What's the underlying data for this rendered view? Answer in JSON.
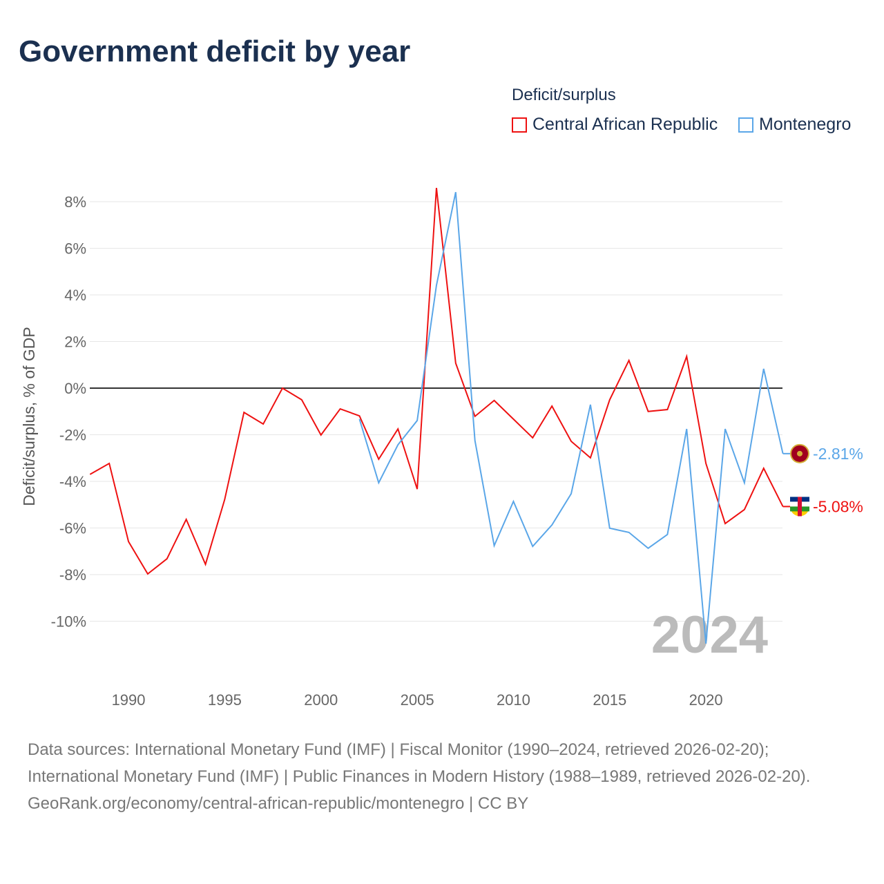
{
  "chart_data": {
    "type": "line",
    "title": "Government deficit by year",
    "ylabel": "Deficit/surplus, % of GDP",
    "xlabel": "",
    "xlim": [
      1988,
      2024
    ],
    "ylim": [
      -11,
      8.6
    ],
    "x_ticks": [
      1990,
      1995,
      2000,
      2005,
      2010,
      2015,
      2020
    ],
    "y_ticks": [
      8,
      6,
      4,
      2,
      0,
      -2,
      -4,
      -6,
      -8,
      -10
    ],
    "y_tick_labels": [
      "8%",
      "6%",
      "4%",
      "2%",
      "0%",
      "-2%",
      "-4%",
      "-6%",
      "-8%",
      "-10%"
    ],
    "x_tick_labels": [
      "1990",
      "1995",
      "2000",
      "2005",
      "2010",
      "2015",
      "2020"
    ],
    "legend_title": "Deficit/surplus",
    "legend_placement": "top-right",
    "year_watermark": "2024",
    "series": [
      {
        "name": "Central African Republic",
        "color": "#ee1111",
        "end_label": "-5.08%",
        "x": [
          1988,
          1989,
          1990,
          1991,
          1992,
          1993,
          1994,
          1995,
          1996,
          1997,
          1998,
          1999,
          2000,
          2001,
          2002,
          2003,
          2004,
          2005,
          2006,
          2007,
          2008,
          2009,
          2010,
          2011,
          2012,
          2013,
          2014,
          2015,
          2016,
          2017,
          2018,
          2019,
          2020,
          2021,
          2022,
          2023,
          2024
        ],
        "values": [
          -3.7,
          -3.23,
          -6.58,
          -7.97,
          -7.32,
          -5.63,
          -7.56,
          -4.77,
          -1.04,
          -1.54,
          0,
          -0.5,
          -2.01,
          -0.89,
          -1.19,
          -3.05,
          -1.75,
          -4.33,
          8.59,
          1.07,
          -1.21,
          -0.53,
          -1.33,
          -2.13,
          -0.77,
          -2.28,
          -2.99,
          -0.5,
          1.19,
          -1.0,
          -0.92,
          1.36,
          -3.23,
          -5.81,
          -5.21,
          -3.44,
          -5.08
        ]
      },
      {
        "name": "Montenegro",
        "color": "#5aa6e8",
        "end_label": "-2.81%",
        "x": [
          2002,
          2003,
          2004,
          2005,
          2006,
          2007,
          2008,
          2009,
          2010,
          2011,
          2012,
          2013,
          2014,
          2015,
          2016,
          2017,
          2018,
          2019,
          2020,
          2021,
          2022,
          2023,
          2024
        ],
        "values": [
          -1.33,
          -4.06,
          -2.43,
          -1.39,
          4.41,
          8.41,
          -2.25,
          -6.76,
          -4.86,
          -6.79,
          -5.87,
          -4.53,
          -0.71,
          -6.01,
          -6.19,
          -6.87,
          -6.28,
          -1.75,
          -10.96,
          -1.75,
          -4.06,
          0.83,
          -2.81
        ]
      }
    ]
  },
  "footer": {
    "sources": "Data sources: International Monetary Fund (IMF) | Fiscal Monitor (1990–2024, retrieved 2026-02-20); International Monetary Fund (IMF) | Public Finances in Modern History (1988–1989, retrieved 2026-02-20).",
    "link": "GeoRank.org/economy/central-african-republic/montenegro | CC BY"
  }
}
